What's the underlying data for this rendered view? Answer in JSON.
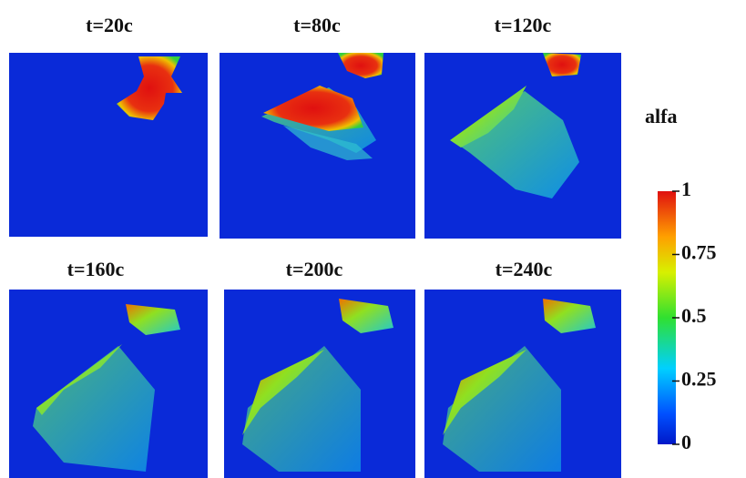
{
  "panels": [
    {
      "title": "t=20c"
    },
    {
      "title": "t=80c"
    },
    {
      "title": "t=120c"
    },
    {
      "title": "t=160c"
    },
    {
      "title": "t=200c"
    },
    {
      "title": "t=240c"
    }
  ],
  "colorbar": {
    "label": "alfa",
    "range": [
      0,
      1
    ],
    "ticks": [
      1,
      0.75,
      0.5,
      0.25,
      0
    ]
  }
}
